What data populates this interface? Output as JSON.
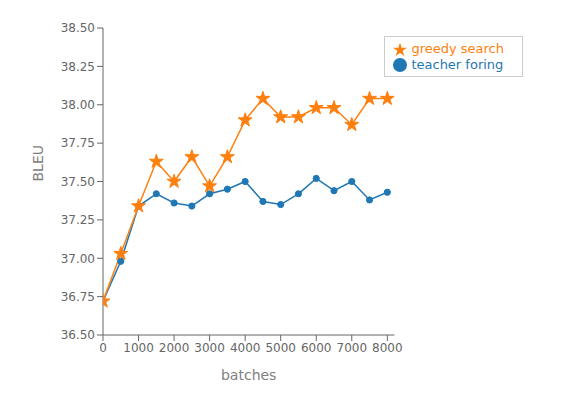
{
  "chart_data": {
    "type": "line",
    "xlabel": "batches",
    "ylabel": "BLEU",
    "x": [
      0,
      500,
      1000,
      1500,
      2000,
      2500,
      3000,
      3500,
      4000,
      4500,
      5000,
      5500,
      6000,
      6500,
      7000,
      7500,
      8000
    ],
    "series": [
      {
        "name": "teacher foring",
        "color": "#1f77b4",
        "marker": "circle",
        "values": [
          36.72,
          36.98,
          37.34,
          37.42,
          37.36,
          37.34,
          37.42,
          37.45,
          37.5,
          37.37,
          37.35,
          37.42,
          37.52,
          37.44,
          37.5,
          37.38,
          37.43
        ]
      },
      {
        "name": "greedy search",
        "color": "#ff7f0e",
        "marker": "star",
        "values": [
          36.72,
          37.03,
          37.34,
          37.63,
          37.5,
          37.66,
          37.47,
          37.66,
          37.9,
          38.04,
          37.92,
          37.92,
          37.98,
          37.98,
          37.87,
          38.04,
          38.04
        ]
      }
    ],
    "xlim": [
      0,
      8200
    ],
    "xticks": [
      0,
      1000,
      2000,
      3000,
      4000,
      5000,
      6000,
      7000,
      8000
    ],
    "ylim": [
      36.5,
      38.5
    ],
    "yticks": [
      {
        "value": 36.5,
        "label": "36.50"
      },
      {
        "value": 36.75,
        "label": "36.75"
      },
      {
        "value": 37,
        "label": "37.00"
      },
      {
        "value": 37.25,
        "label": "37.25"
      },
      {
        "value": 37.5,
        "label": "37.50"
      },
      {
        "value": 37.75,
        "label": "37.75"
      },
      {
        "value": 38,
        "label": "38.00"
      },
      {
        "value": 38.25,
        "label": "38.25"
      },
      {
        "value": 38.5,
        "label": "38.50"
      }
    ],
    "legend": "upper right",
    "grid": false
  }
}
